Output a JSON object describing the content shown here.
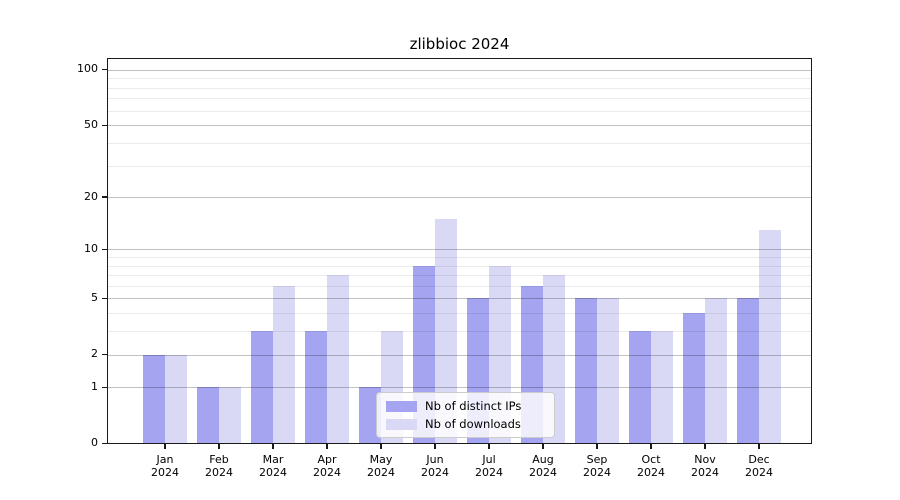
{
  "figure": {
    "title": "zlibbioc 2024"
  },
  "chart_data": {
    "type": "bar",
    "title": "zlibbioc 2024",
    "categories": [
      "Jan",
      "Feb",
      "Mar",
      "Apr",
      "May",
      "Jun",
      "Jul",
      "Aug",
      "Sep",
      "Oct",
      "Nov",
      "Dec"
    ],
    "category_year": "2024",
    "series": [
      {
        "name": "Nb of distinct IPs",
        "color": "#a4a4f0",
        "values": [
          2,
          1,
          3,
          3,
          1,
          8,
          5,
          6,
          5,
          3,
          4,
          5
        ]
      },
      {
        "name": "Nb of downloads",
        "color": "#d9d9f6",
        "values": [
          2,
          1,
          6,
          7,
          3,
          15,
          8,
          7,
          5,
          3,
          5,
          13
        ]
      }
    ],
    "y_axis": {
      "scale": "log1p",
      "major_ticks": [
        0,
        1,
        2,
        5,
        10,
        20,
        50,
        100
      ],
      "minor_ticks": [
        3,
        4,
        6,
        7,
        8,
        9,
        30,
        40,
        60,
        70,
        80,
        90
      ],
      "max": 116,
      "ylim": [
        0,
        116
      ]
    },
    "x_axis": {
      "label_line_2": "2024"
    },
    "legend": {
      "position": "inside-bottom-center"
    },
    "colors": {
      "bar_distinct_ips": "#a4a4f0",
      "bar_downloads": "#d9d9f6",
      "major_grid": "#c2c2c2",
      "minor_grid": "#ebebeb",
      "spine": "#1a1a1a",
      "text": "#000000",
      "background": "#ffffff"
    },
    "grid": "on"
  }
}
